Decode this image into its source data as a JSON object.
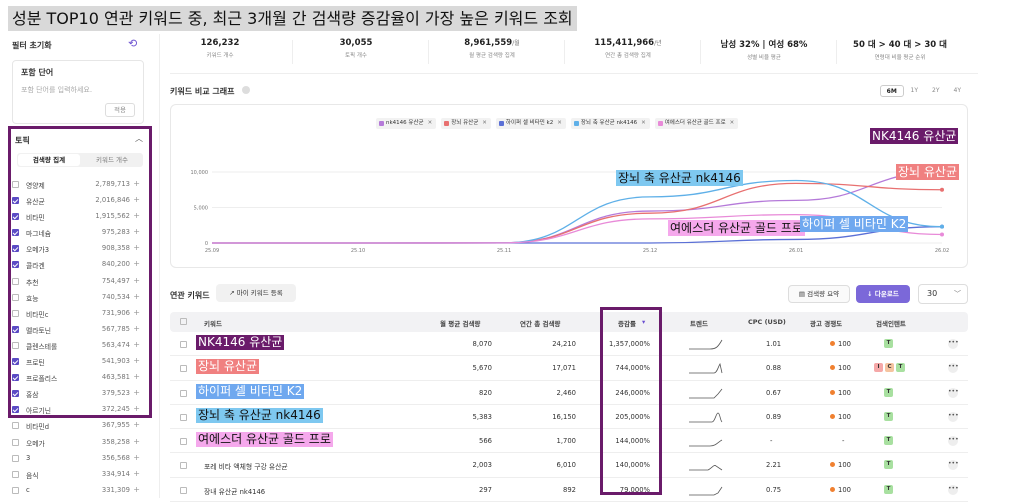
{
  "banner": "성분 TOP10 연관 키워드 중, 최근 3개월 간 검색량 증감율이 가장 높은 키워드 조회",
  "sidebar": {
    "filter_reset": "필터 초기화",
    "include_title": "포함 단어",
    "include_placeholder": "포함 단어를 입력하세요.",
    "apply_label": "적용",
    "topic_title": "토픽",
    "seg_left": "검색량 집계",
    "seg_right": "키워드 개수",
    "topics": [
      {
        "name": "영양제",
        "value": "2,789,713",
        "checked": false
      },
      {
        "name": "유산균",
        "value": "2,016,846",
        "checked": true
      },
      {
        "name": "비타민",
        "value": "1,915,562",
        "checked": true
      },
      {
        "name": "마그네슘",
        "value": "975,283",
        "checked": true
      },
      {
        "name": "오메가3",
        "value": "908,358",
        "checked": true
      },
      {
        "name": "콜라겐",
        "value": "840,200",
        "checked": true
      },
      {
        "name": "추천",
        "value": "754,497",
        "checked": false
      },
      {
        "name": "효능",
        "value": "740,534",
        "checked": false
      },
      {
        "name": "비타민c",
        "value": "731,906",
        "checked": false
      },
      {
        "name": "멜라토닌",
        "value": "567,785",
        "checked": true
      },
      {
        "name": "클렌스테롤",
        "value": "563,474",
        "checked": false
      },
      {
        "name": "프로틴",
        "value": "541,903",
        "checked": true
      },
      {
        "name": "프로폴리스",
        "value": "463,581",
        "checked": true
      },
      {
        "name": "홍삼",
        "value": "379,523",
        "checked": true
      },
      {
        "name": "아르기닌",
        "value": "372,245",
        "checked": true
      },
      {
        "name": "비타민d",
        "value": "367,955",
        "checked": false
      },
      {
        "name": "오메가",
        "value": "358,258",
        "checked": false
      },
      {
        "name": "3",
        "value": "356,568",
        "checked": false
      },
      {
        "name": "음식",
        "value": "334,914",
        "checked": false
      },
      {
        "name": "c",
        "value": "331,309",
        "checked": false
      }
    ]
  },
  "stats": [
    {
      "value": "126,232",
      "unit": "",
      "label": "키워드 개수"
    },
    {
      "value": "30,055",
      "unit": "",
      "label": "토픽 개수"
    },
    {
      "value": "8,961,559",
      "unit": "/월",
      "label": "월 평균 검색량 집계"
    },
    {
      "value": "115,411,966",
      "unit": "/년",
      "label": "연간 총 검색량 집계"
    },
    {
      "value": "남성 32% | 여성 68%",
      "unit": "",
      "label": "성별 비율 평균"
    },
    {
      "value": "50 대 > 40 대 > 30 대",
      "unit": "",
      "label": "연령대 비율 평균 순위"
    }
  ],
  "chart_section": {
    "title": "키워드 비교 그래프",
    "periods": [
      "6M",
      "1Y",
      "2Y",
      "4Y"
    ],
    "active_period": "6M"
  },
  "chart_data": {
    "type": "line",
    "x": [
      "25.09",
      "25.10",
      "25.11",
      "25.12",
      "26.01",
      "26.02"
    ],
    "ylim": [
      0,
      10000
    ],
    "y_ticks": [
      "10,000",
      "5,000",
      "0"
    ],
    "grid": true,
    "legend_position": "top-center",
    "series": [
      {
        "name": "nk4146 유산균",
        "color": "#b57ad9",
        "values": [
          0,
          0,
          20,
          4500,
          6000,
          10000
        ]
      },
      {
        "name": "장뇌 유산균",
        "color": "#e87070",
        "values": [
          0,
          0,
          20,
          4200,
          8400,
          7500
        ]
      },
      {
        "name": "하이퍼 셀 비타민 k2",
        "color": "#5b70d6",
        "values": [
          0,
          0,
          0,
          0,
          500,
          2300
        ]
      },
      {
        "name": "장뇌 축 유산균 nk4146",
        "color": "#5fb0e8",
        "values": [
          0,
          0,
          20,
          6500,
          8800,
          2300
        ]
      },
      {
        "name": "여에스더 유산균 골드 프로",
        "color": "#e88ad8",
        "values": [
          0,
          0,
          20,
          3400,
          4000,
          1200
        ]
      }
    ]
  },
  "chart_callouts": [
    {
      "text": "NK4146 유산균",
      "bg": "#6a1b6a",
      "color": "#ffffff"
    },
    {
      "text": "장뇌 유산균",
      "bg": "#f08080",
      "color": "#ffffff"
    },
    {
      "text": "장뇌 축 유산균 nk4146",
      "bg": "#7ec8f0",
      "color": "#111111"
    },
    {
      "text": "여에스더 유산균 골드 프로",
      "bg": "#f5a8ec",
      "color": "#111111"
    },
    {
      "text": "하이퍼 셀 비타민 K2",
      "bg": "#6fa8ef",
      "color": "#ffffff"
    }
  ],
  "keywords_section": {
    "title": "연관 키워드",
    "my_keyword_btn": "마이 키워드 등록",
    "summary_btn": "검색량 요약",
    "download_btn": "다운로드",
    "page_size": "30"
  },
  "table": {
    "headers": [
      "키워드",
      "월 평균 검색량",
      "연간 총 검색량",
      "증감률",
      "트렌드",
      "CPC (USD)",
      "광고 경쟁도",
      "검색인텐트"
    ],
    "rows": [
      {
        "keyword": "NK4146 유산균",
        "hl_bg": "#6a1b6a",
        "hl_color": "#ffffff",
        "monthly": "8,070",
        "yearly": "24,210",
        "rate": "1,357,000%",
        "cpc": "1.01",
        "comp": "100",
        "intent": [
          "T"
        ]
      },
      {
        "keyword": "장뇌 유산균",
        "hl_bg": "#f08080",
        "hl_color": "#ffffff",
        "monthly": "5,670",
        "yearly": "17,071",
        "rate": "744,000%",
        "cpc": "0.88",
        "comp": "100",
        "intent": [
          "I",
          "C",
          "T"
        ]
      },
      {
        "keyword": "하이퍼 셀 비타민 K2",
        "hl_bg": "#6fa8ef",
        "hl_color": "#ffffff",
        "monthly": "820",
        "yearly": "2,460",
        "rate": "246,000%",
        "cpc": "0.67",
        "comp": "100",
        "intent": [
          "T"
        ]
      },
      {
        "keyword": "장뇌 축 유산균 nk4146",
        "hl_bg": "#7ec8f0",
        "hl_color": "#111111",
        "monthly": "5,383",
        "yearly": "16,150",
        "rate": "205,000%",
        "cpc": "0.89",
        "comp": "100",
        "intent": [
          "T"
        ]
      },
      {
        "keyword": "여에스더 유산균 골드 프로",
        "hl_bg": "#f5a8ec",
        "hl_color": "#111111",
        "monthly": "566",
        "yearly": "1,700",
        "rate": "144,000%",
        "cpc": "-",
        "comp": "-",
        "intent": [
          "T"
        ]
      },
      {
        "keyword": "포레 비타 액체형 구강 유산균",
        "hl_bg": "",
        "hl_color": "",
        "monthly": "2,003",
        "yearly": "6,010",
        "rate": "140,000%",
        "cpc": "2.21",
        "comp": "100",
        "intent": [
          "T"
        ]
      },
      {
        "keyword": "장내 유산균 nk4146",
        "hl_bg": "",
        "hl_color": "",
        "monthly": "297",
        "yearly": "892",
        "rate": "79,000%",
        "cpc": "0.75",
        "comp": "100",
        "intent": [
          "T"
        ]
      }
    ]
  },
  "colors": {
    "accent": "#7b68d9",
    "highlight_frame": "#6a1b6a",
    "rate_text": "#4a6fd8"
  }
}
